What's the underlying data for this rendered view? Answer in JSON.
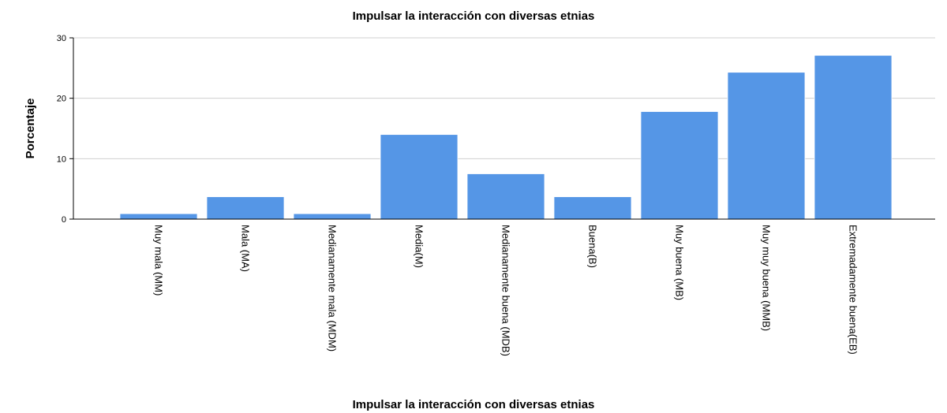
{
  "chart_data": {
    "type": "bar",
    "title": "Impulsar la interacción con diversas etnias",
    "xlabel": "Impulsar la interacción con diversas etnias",
    "ylabel": "Porcentaje",
    "categories": [
      "Muy mala (MM)",
      "Mala (MA)",
      "Medianamente mala (MDM)",
      "Media(M)",
      "Medianamente buena (MDB)",
      "Buena(B)",
      "Muy buena (MB)",
      "Muy muy buena (MMB)",
      "Extremadamente buena(EB)"
    ],
    "values": [
      0.9,
      3.7,
      0.9,
      14.0,
      7.5,
      3.7,
      17.8,
      24.3,
      27.1
    ],
    "ylim": [
      0,
      30
    ],
    "yticks": [
      "0",
      "10",
      "20",
      "30"
    ],
    "grid": true,
    "bar_color": "#5596e6"
  }
}
